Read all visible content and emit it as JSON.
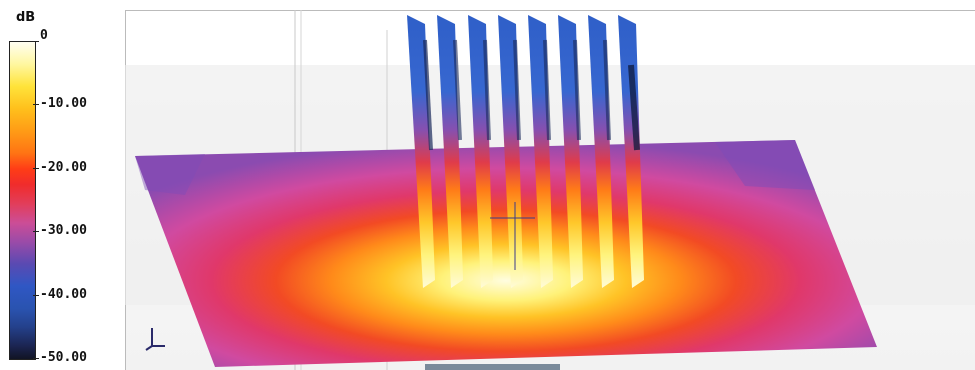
{
  "legend": {
    "unit": "dB",
    "ticks": [
      {
        "label": "0",
        "value": 0
      },
      {
        "label": "-10.00",
        "value": -10
      },
      {
        "label": "-20.00",
        "value": -20
      },
      {
        "label": "-30.00",
        "value": -30
      },
      {
        "label": "-40.00",
        "value": -40
      },
      {
        "label": "-50.00",
        "value": -50
      }
    ],
    "range": [
      -50,
      0
    ]
  },
  "scene": {
    "fin_count": 8,
    "plane_outer_color": "#8b4bb0",
    "hotspot_color": "#fff7a0"
  }
}
